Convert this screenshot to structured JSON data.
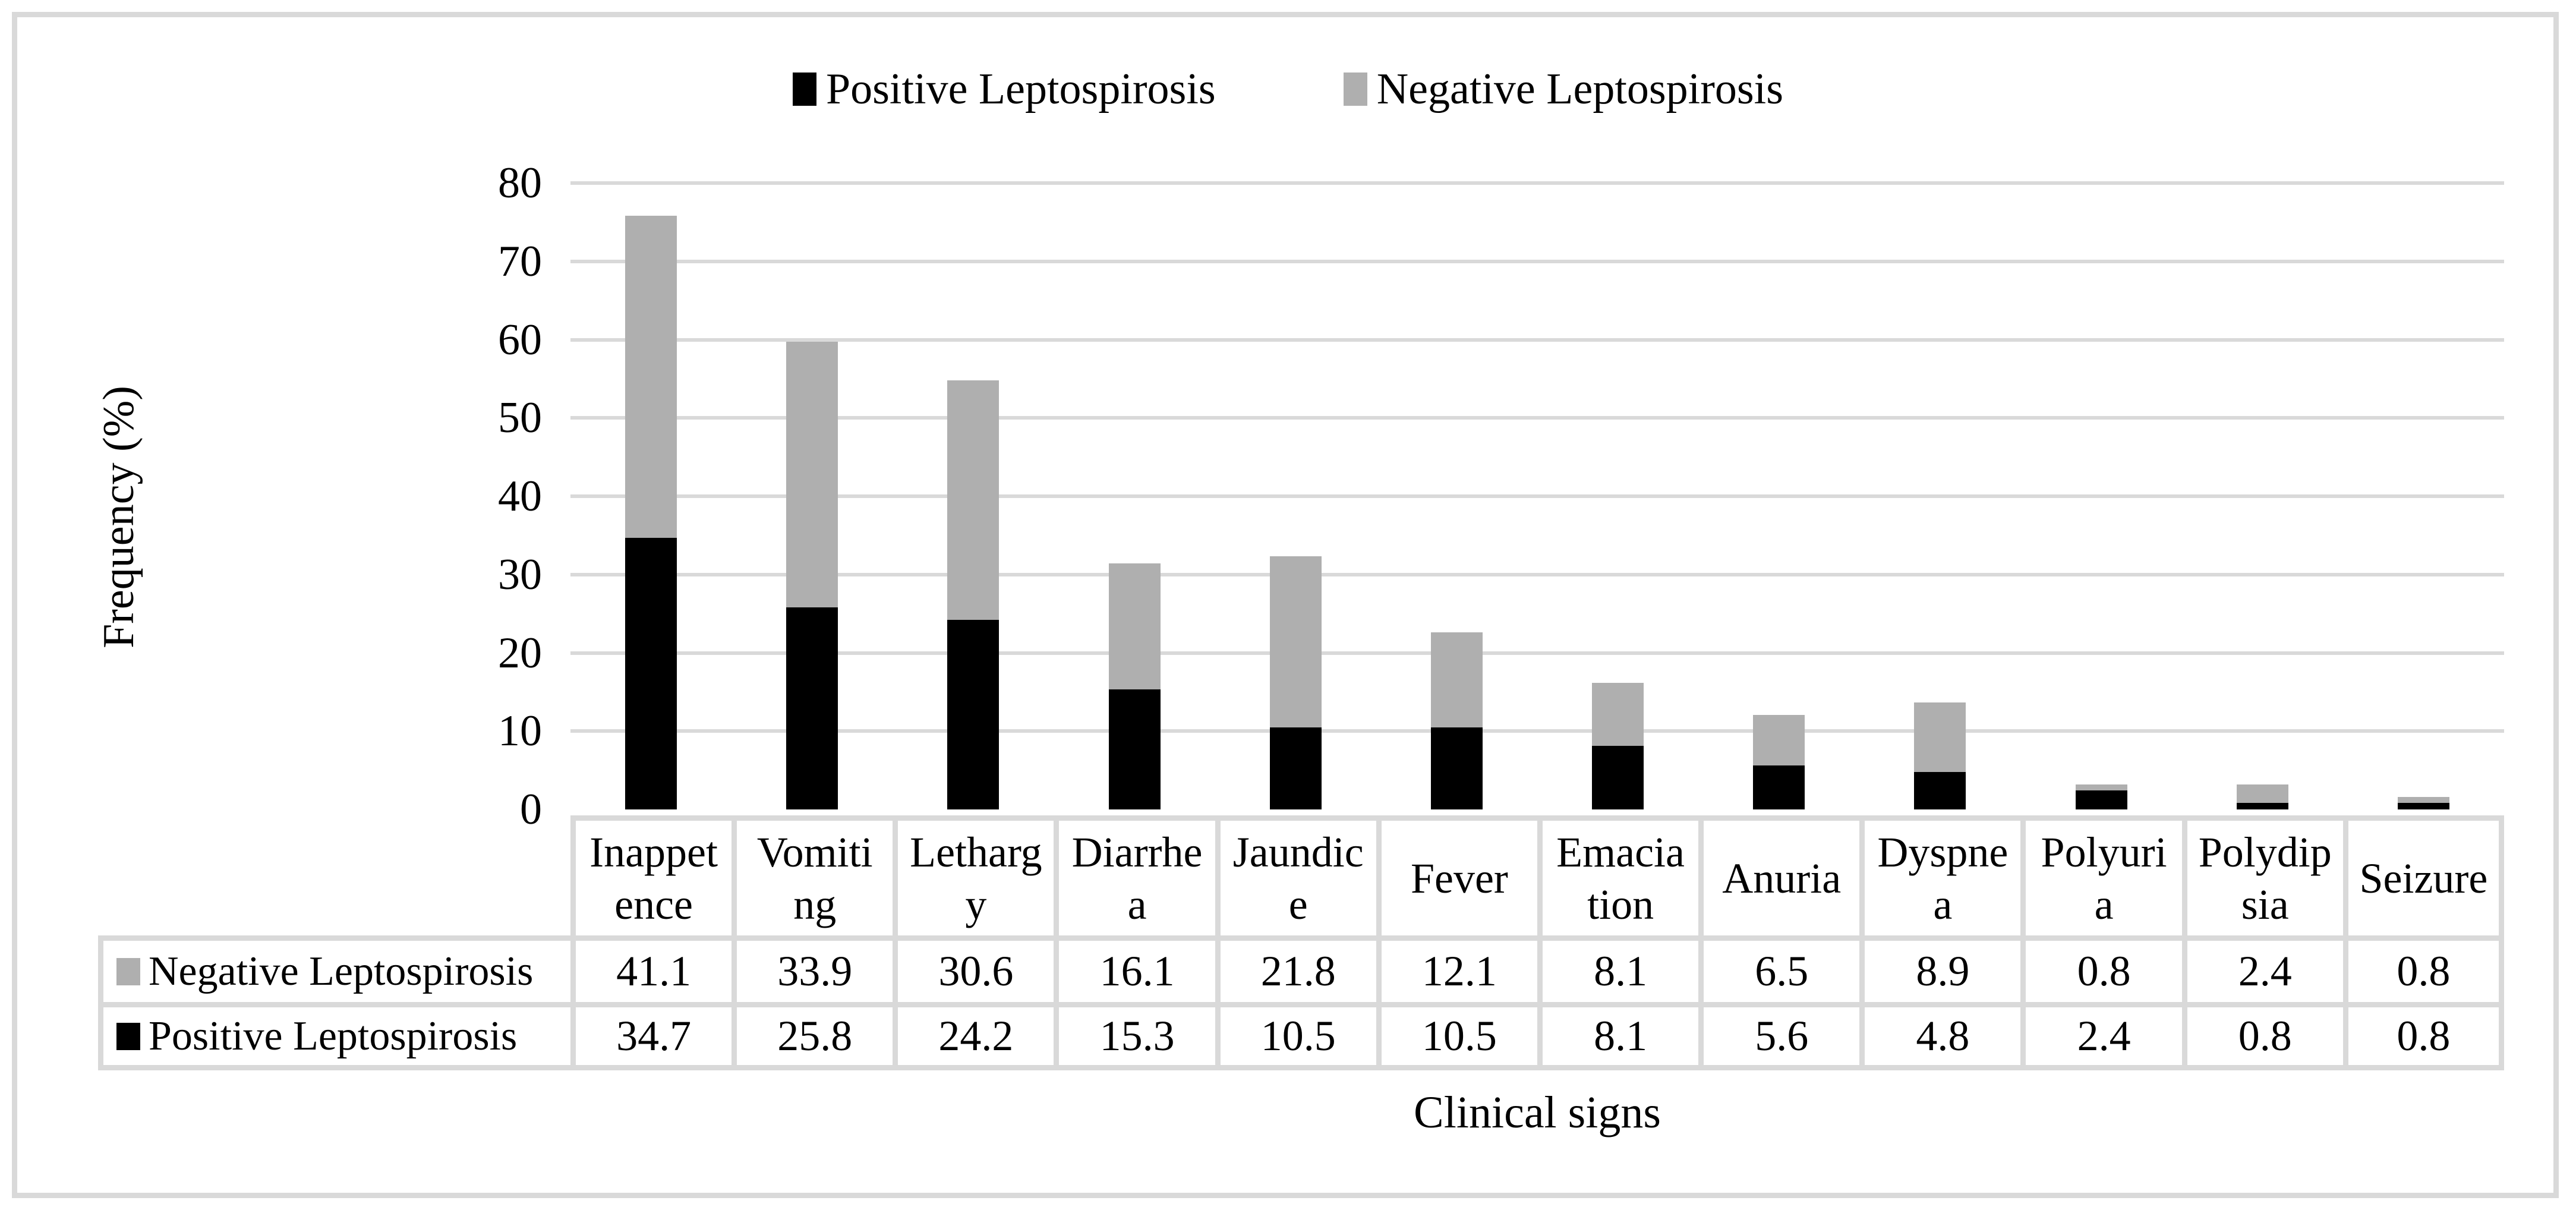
{
  "legend": {
    "items": [
      {
        "label": "Positive Leptospirosis",
        "color": "#000000"
      },
      {
        "label": "Negative Leptospirosis",
        "color": "#afafaf"
      }
    ]
  },
  "axes": {
    "y_title": "Frequency (%)",
    "x_title": "Clinical signs"
  },
  "colors": {
    "positive_series": "#000000",
    "negative_series": "#afafaf",
    "gridline": "#d9d9d9",
    "table_border": "#d9d9d9",
    "figure_border": "#d9d9d9",
    "background": "#ffffff"
  },
  "chart_data": {
    "type": "bar",
    "stacked": true,
    "title": "",
    "xlabel": "Clinical signs",
    "ylabel": "Frequency (%)",
    "ylim": [
      0,
      80
    ],
    "yticks": [
      0,
      10,
      20,
      30,
      40,
      50,
      60,
      70,
      80
    ],
    "grid": true,
    "legend_position": "top",
    "categories": [
      "Inappetence",
      "Vomiting",
      "Lethargy",
      "Diarrhea",
      "Jaundice",
      "Fever",
      "Emaciation",
      "Anuria",
      "Dyspnea",
      "Polyuria",
      "Polydipsia",
      "Seizure"
    ],
    "category_display_lines": [
      "Inappet\nence",
      "Vomiti\nng",
      "Letharg\ny",
      "Diarrhe\na",
      "Jaundic\ne",
      "Fever",
      "Emacia\ntion",
      "Anuria",
      "Dyspne\na",
      "Polyuri\na",
      "Polydip\nsia",
      "Seizure"
    ],
    "series": [
      {
        "name": "Positive Leptospirosis",
        "color": "#000000",
        "values": [
          34.7,
          25.8,
          24.2,
          15.3,
          10.5,
          10.5,
          8.1,
          5.6,
          4.8,
          2.4,
          0.8,
          0.8
        ]
      },
      {
        "name": "Negative Leptospirosis",
        "color": "#afafaf",
        "values": [
          41.1,
          33.9,
          30.6,
          16.1,
          21.8,
          12.1,
          8.1,
          6.5,
          8.9,
          0.8,
          2.4,
          0.8
        ]
      }
    ],
    "data_table_row_order": [
      "Negative Leptospirosis",
      "Positive Leptospirosis"
    ]
  }
}
